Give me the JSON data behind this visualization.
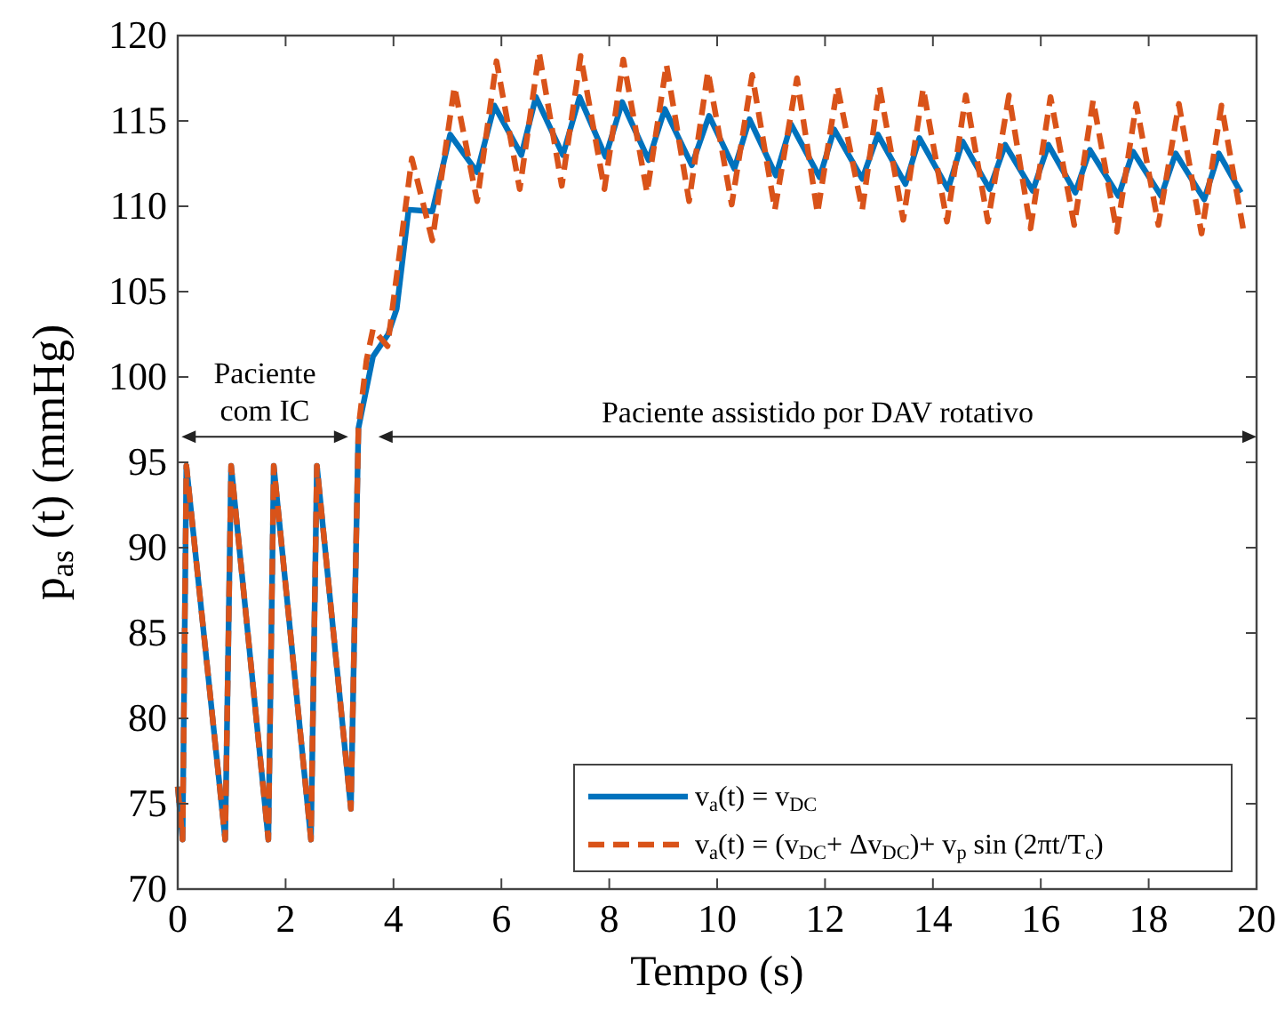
{
  "chart_data": {
    "type": "line",
    "xlabel": "Tempo (s)",
    "ylabel": "p$_{as}$ (t) (mmHg)",
    "xlim": [
      0,
      20
    ],
    "ylim": [
      70,
      120
    ],
    "xticks": [
      0,
      2,
      4,
      6,
      8,
      10,
      12,
      14,
      16,
      18,
      20
    ],
    "yticks": [
      70,
      75,
      80,
      85,
      90,
      95,
      100,
      105,
      110,
      115,
      120
    ],
    "grid": false,
    "legend": "bottom right",
    "marker": "none",
    "annotations": [
      "Paciente\ncom IC",
      "Paciente assistido por DAV rotativo"
    ],
    "series": [
      {
        "name": "v$_{a}$(t) = v$_{DC}$",
        "color": "#0072bd",
        "line_style": "solid",
        "x": [
          0,
          0.09,
          0.16,
          0.88,
          0.99,
          1.68,
          1.78,
          2.47,
          2.58,
          3.21,
          3.35,
          3.62,
          3.9,
          4.06,
          4.28,
          4.72,
          5.05,
          5.55,
          5.87,
          6.37,
          6.64,
          7.14,
          7.45,
          7.93,
          8.24,
          8.73,
          9.03,
          9.53,
          9.85,
          10.32,
          10.6,
          11.09,
          11.37,
          11.9,
          12.17,
          12.69,
          12.98,
          13.49,
          13.75,
          14.28,
          14.55,
          15.05,
          15.34,
          15.85,
          16.14,
          16.64,
          16.91,
          17.44,
          17.71,
          18.23,
          18.5,
          19.03,
          19.3,
          19.71
        ],
        "values": [
          76,
          72.9,
          94.8,
          72.9,
          94.8,
          72.9,
          94.8,
          72.9,
          94.8,
          74.7,
          97,
          101.2,
          102.5,
          104,
          109.8,
          109.7,
          114.2,
          112,
          115.9,
          113,
          116.4,
          113,
          116.4,
          112.9,
          116.1,
          112.7,
          115.7,
          112.4,
          115.3,
          112.2,
          115.1,
          111.8,
          114.8,
          111.7,
          114.5,
          111.6,
          114.2,
          111.3,
          114,
          111,
          113.8,
          111,
          113.6,
          110.9,
          113.6,
          110.8,
          113.3,
          110.6,
          113.2,
          110.6,
          113.1,
          110.4,
          113.1,
          110.8
        ]
      },
      {
        "name": "v$_{a}$(t) = (v$_{DC}$+ Δv$_{DC}$)+ v$_{p}$ sin (2πt/T$_{c}$)",
        "color": "#d95319",
        "line_style": "dashed",
        "x": [
          0,
          0.09,
          0.16,
          0.88,
          0.99,
          1.68,
          1.78,
          2.47,
          2.58,
          3.21,
          3.35,
          3.5,
          3.62,
          3.89,
          4.34,
          4.72,
          5.13,
          5.55,
          5.91,
          6.34,
          6.7,
          7.12,
          7.47,
          7.91,
          8.26,
          8.7,
          9.06,
          9.48,
          9.83,
          10.27,
          10.65,
          11.07,
          11.48,
          11.86,
          12.23,
          12.69,
          13.01,
          13.45,
          13.82,
          14.26,
          14.61,
          15.02,
          15.41,
          15.81,
          16.18,
          16.62,
          16.97,
          17.41,
          17.77,
          18.18,
          18.56,
          18.98,
          19.35,
          19.75
        ],
        "values": [
          76,
          72.9,
          94.8,
          72.9,
          94.8,
          72.9,
          94.8,
          72.9,
          94.8,
          74.7,
          97,
          101,
          102.8,
          101.8,
          112.8,
          108,
          117,
          110.3,
          118.5,
          111,
          119,
          111.2,
          118.8,
          111,
          118.6,
          110.8,
          118.3,
          110.3,
          117.9,
          110.1,
          117.7,
          109.8,
          117.5,
          109.6,
          117,
          109.8,
          117,
          109.2,
          116.9,
          109.1,
          116.5,
          109.1,
          116.5,
          108.7,
          116.4,
          108.9,
          116.2,
          108.5,
          116,
          108.9,
          116,
          108.4,
          115.9,
          108.7
        ]
      }
    ]
  }
}
